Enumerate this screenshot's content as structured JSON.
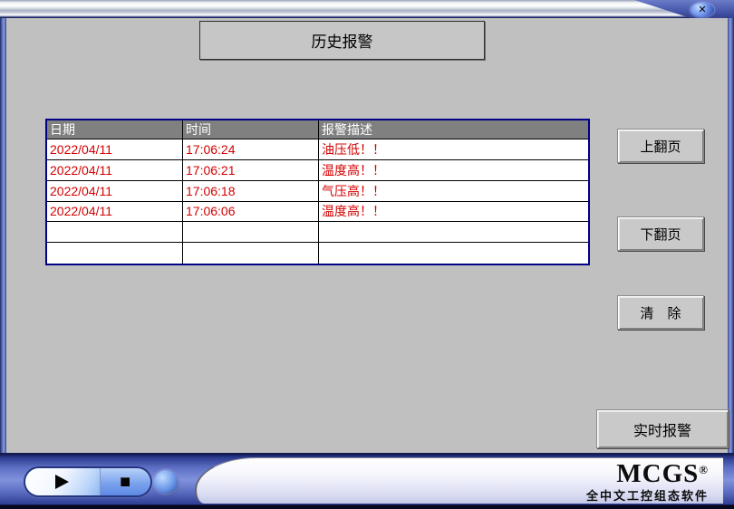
{
  "window": {
    "close_glyph": "✕"
  },
  "header": {
    "title": "历史报警"
  },
  "table": {
    "columns": [
      "日期",
      "时间",
      "报警描述"
    ],
    "rows": [
      [
        "2022/04/11",
        "17:06:24",
        "油压低！！"
      ],
      [
        "2022/04/11",
        "17:06:21",
        "温度高！！"
      ],
      [
        "2022/04/11",
        "17:06:18",
        "气压高！！"
      ],
      [
        "2022/04/11",
        "17:06:06",
        "温度高！！"
      ],
      [
        "",
        "",
        ""
      ],
      [
        "",
        "",
        ""
      ]
    ]
  },
  "buttons": {
    "page_up": "上翻页",
    "page_down": "下翻页",
    "clear": "清　除",
    "realtime": "实时报警"
  },
  "footer": {
    "brand": "MCGS",
    "registered_mark": "®",
    "brand_subtitle": "全中文工控组态软件"
  },
  "colors": {
    "alarm_text": "#d40000",
    "table_border": "#000088",
    "table_header_bg": "#808080",
    "window_bg": "#c0c0c0",
    "frame_blue": "#4a5aae"
  }
}
